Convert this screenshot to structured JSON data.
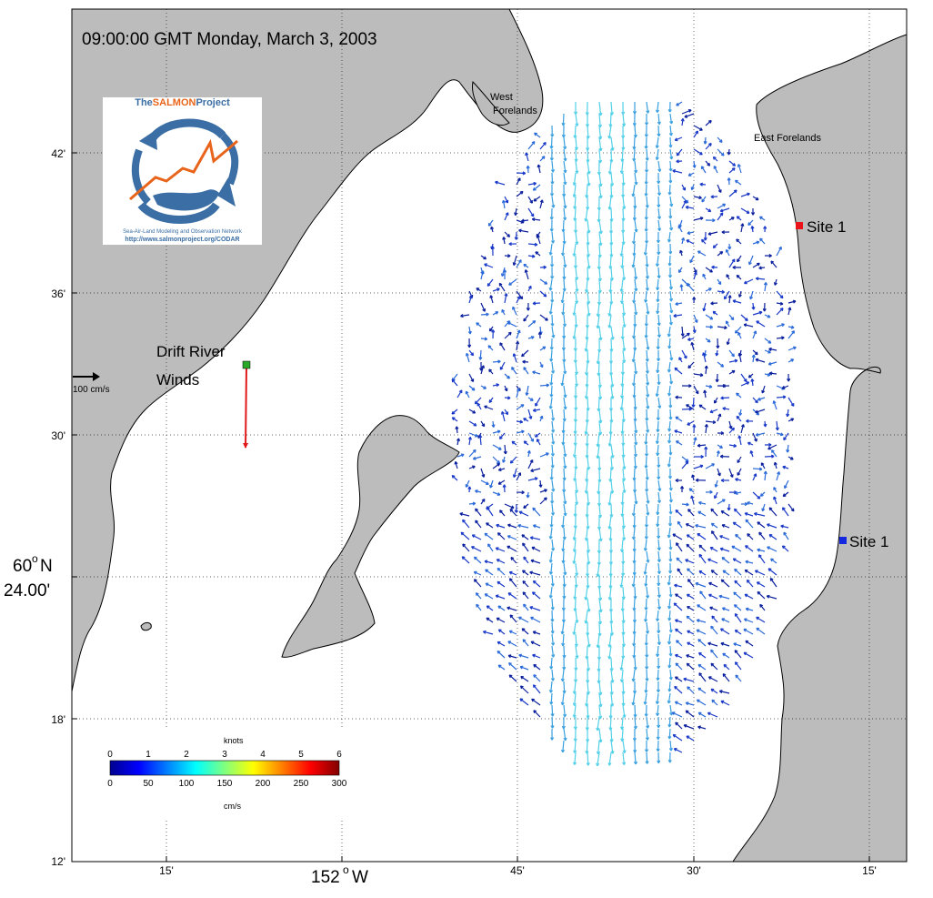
{
  "title": "09:00:00 GMT Monday, March 3, 2003",
  "colors": {
    "land": "#bcbcbc",
    "water": "#ffffff",
    "site_red": "#e8141a",
    "site_blue": "#1428e0",
    "wind_arrow": "#e01818",
    "wind_marker": "#2aa82a"
  },
  "y_ticks": [
    "42'",
    "36'",
    "30'",
    "18'",
    "12'"
  ],
  "y_major": {
    "deg": "60",
    "unit": "N",
    "min": "24.00'"
  },
  "x_ticks": [
    "15'",
    "45'",
    "30'",
    "15'"
  ],
  "x_major": {
    "deg": "152",
    "unit": "W"
  },
  "places": {
    "west_forelands_1": "West",
    "west_forelands_2": "Forelands",
    "east_forelands": "East Forelands"
  },
  "sites": [
    {
      "label": "Site 1",
      "color": "red"
    },
    {
      "label": "Site 1",
      "color": "blue"
    }
  ],
  "wind": {
    "label_line1": "Drift River",
    "label_line2": "Winds",
    "direction": "south"
  },
  "scale_vector": {
    "label": "100 cm/s"
  },
  "logo": {
    "brand_pre": "The",
    "brand_main": "SALMON",
    "brand_post": "Project",
    "network_text": "Sea-Air-Land Modeling and Observation Network",
    "url": "http://www.salmonproject.org/CODAR"
  },
  "colorbar": {
    "top_label": "knots",
    "knots_ticks": [
      "0",
      "1",
      "2",
      "3",
      "4",
      "5",
      "6"
    ],
    "cms_ticks": [
      "0",
      "50",
      "100",
      "150",
      "200",
      "250",
      "300"
    ],
    "bottom_label": "cm/s"
  }
}
